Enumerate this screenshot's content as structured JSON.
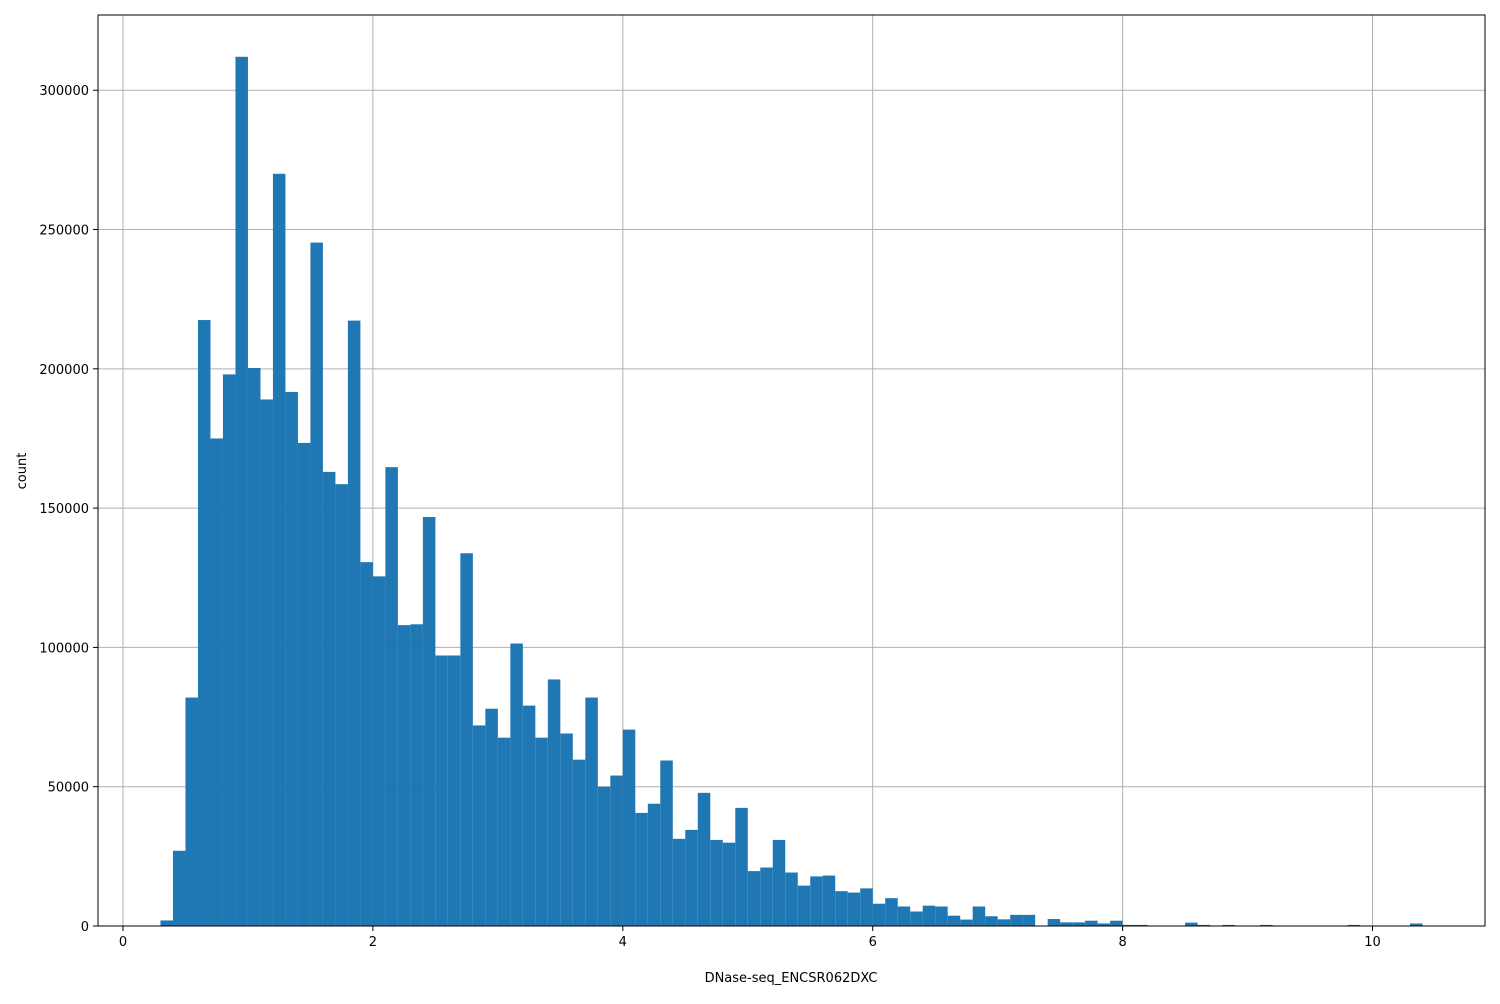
{
  "chart_data": {
    "type": "bar",
    "subtype": "histogram",
    "title": "",
    "xlabel": "DNase-seq_ENCSR062DXC",
    "ylabel": "count",
    "xlim": [
      -0.2,
      10.9
    ],
    "ylim": [
      0,
      327000
    ],
    "grid": true,
    "legend": null,
    "bar_color": "#1f77b4",
    "bin_width": 0.1,
    "x_ticks": [
      0,
      2,
      4,
      6,
      8,
      10
    ],
    "x_tick_labels": [
      "0",
      "2",
      "4",
      "6",
      "8",
      "10"
    ],
    "y_ticks": [
      0,
      50000,
      100000,
      150000,
      200000,
      250000,
      300000
    ],
    "y_tick_labels": [
      "0",
      "50000",
      "100000",
      "150000",
      "200000",
      "250000",
      "300000"
    ],
    "bin_edges_start": 0.3,
    "values": [
      2000,
      27000,
      82000,
      217500,
      175000,
      198000,
      312000,
      200300,
      189000,
      270000,
      191700,
      173400,
      245300,
      163000,
      158600,
      217300,
      130600,
      125500,
      164700,
      108000,
      108300,
      146800,
      97100,
      97100,
      133800,
      72000,
      78000,
      67600,
      101400,
      79100,
      67600,
      88500,
      69100,
      59700,
      82000,
      50000,
      54000,
      70500,
      40600,
      43900,
      59400,
      31300,
      34500,
      47800,
      30900,
      29900,
      42400,
      19700,
      21000,
      30900,
      19200,
      14500,
      17800,
      18100,
      12500,
      12000,
      13500,
      8000,
      10000,
      7000,
      5200,
      7300,
      7000,
      3700,
      2300,
      7000,
      3500,
      2400,
      4000,
      4000,
      0,
      2500,
      1300,
      1300,
      1900,
      900,
      1900,
      400,
      400,
      0,
      0,
      0,
      1200,
      400,
      0,
      400,
      0,
      0,
      400,
      0,
      0,
      0,
      0,
      0,
      0,
      400,
      0,
      0,
      0,
      0,
      900
    ]
  }
}
